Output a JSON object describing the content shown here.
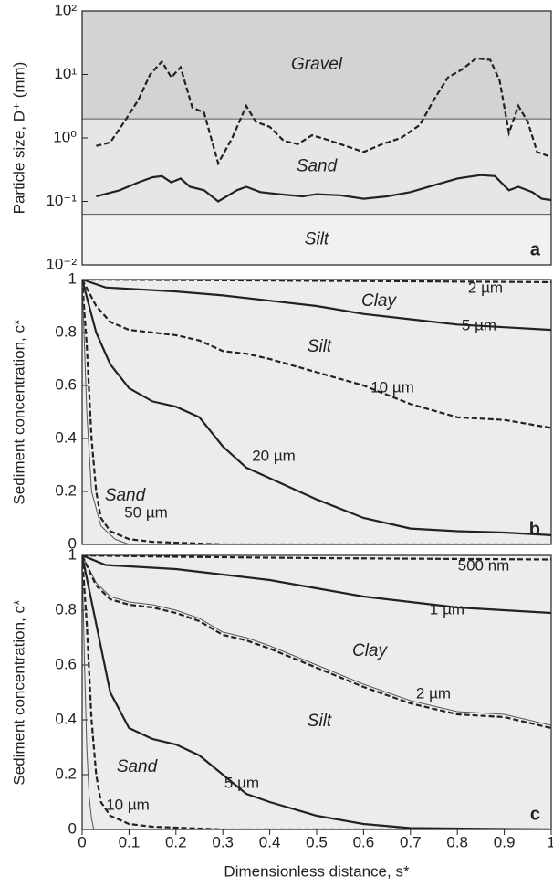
{
  "chart_data": [
    {
      "type": "line",
      "panel_label": "a",
      "ylabel": "Particle size, D⁺ (mm)",
      "yscale": "log",
      "xlim": [
        0,
        1
      ],
      "ylim": [
        0.01,
        100
      ],
      "yticks": [
        {
          "value": 100,
          "label": "10²"
        },
        {
          "value": 10,
          "label": "10¹"
        },
        {
          "value": 1,
          "label": "10⁰"
        },
        {
          "value": 0.1,
          "label": "10⁻¹"
        },
        {
          "value": 0.01,
          "label": "10⁻²"
        }
      ],
      "bands": [
        {
          "name": "Gravel",
          "from": 2,
          "to": 100,
          "color": "#d3d3d3"
        },
        {
          "name": "Sand",
          "from": 0.0625,
          "to": 2,
          "color": "#e6e6e6"
        },
        {
          "name": "Silt",
          "from": 0.01,
          "to": 0.0625,
          "color": "#f1f1f1"
        }
      ],
      "series": [
        {
          "color": "#222",
          "dash": true,
          "x": [
            0.03,
            0.06,
            0.09,
            0.12,
            0.145,
            0.17,
            0.19,
            0.21,
            0.235,
            0.26,
            0.29,
            0.32,
            0.35,
            0.37,
            0.4,
            0.43,
            0.46,
            0.49,
            0.52,
            0.55,
            0.6,
            0.64,
            0.68,
            0.72,
            0.75,
            0.78,
            0.81,
            0.84,
            0.87,
            0.89,
            0.91,
            0.93,
            0.95,
            0.97,
            1.0
          ],
          "values": [
            0.75,
            0.85,
            1.8,
            4,
            10,
            16,
            9,
            13,
            3,
            2.5,
            0.4,
            1,
            3.2,
            1.8,
            1.5,
            0.9,
            0.8,
            1.1,
            0.95,
            0.8,
            0.6,
            0.8,
            1,
            1.6,
            4,
            9,
            12,
            18,
            17,
            8,
            1.2,
            3.2,
            1.8,
            0.6,
            0.5
          ]
        },
        {
          "color": "#222",
          "dash": false,
          "x": [
            0.03,
            0.08,
            0.12,
            0.15,
            0.17,
            0.19,
            0.21,
            0.23,
            0.26,
            0.29,
            0.33,
            0.35,
            0.38,
            0.42,
            0.47,
            0.5,
            0.55,
            0.6,
            0.65,
            0.7,
            0.75,
            0.8,
            0.85,
            0.88,
            0.91,
            0.93,
            0.96,
            0.98,
            1.0
          ],
          "values": [
            0.12,
            0.15,
            0.2,
            0.24,
            0.25,
            0.2,
            0.23,
            0.17,
            0.15,
            0.1,
            0.15,
            0.17,
            0.14,
            0.13,
            0.12,
            0.13,
            0.125,
            0.11,
            0.12,
            0.14,
            0.18,
            0.23,
            0.26,
            0.25,
            0.15,
            0.17,
            0.14,
            0.11,
            0.105
          ]
        }
      ]
    },
    {
      "type": "line",
      "panel_label": "b",
      "ylabel": "Sediment concentration, c*",
      "background": "#ececec",
      "xlim": [
        0,
        1
      ],
      "ylim": [
        0,
        1
      ],
      "yticks": [
        0,
        0.2,
        0.4,
        0.6,
        0.8,
        1
      ],
      "annotations": [
        "Clay",
        "Silt",
        "Sand"
      ],
      "series": [
        {
          "name": "2 µm",
          "color": "#222",
          "dash": true,
          "x": [
            0,
            0.2,
            0.5,
            1
          ],
          "values": [
            1,
            0.998,
            0.995,
            0.99
          ]
        },
        {
          "name": "5 µm",
          "color": "#222",
          "dash": false,
          "x": [
            0,
            0.05,
            0.1,
            0.2,
            0.3,
            0.4,
            0.5,
            0.6,
            0.7,
            0.8,
            0.9,
            1
          ],
          "values": [
            1,
            0.97,
            0.965,
            0.955,
            0.94,
            0.92,
            0.9,
            0.87,
            0.85,
            0.83,
            0.82,
            0.81
          ]
        },
        {
          "name": "10 µm",
          "color": "#222",
          "dash": true,
          "x": [
            0,
            0.03,
            0.06,
            0.1,
            0.15,
            0.2,
            0.25,
            0.3,
            0.35,
            0.4,
            0.5,
            0.6,
            0.7,
            0.8,
            0.9,
            1
          ],
          "values": [
            1,
            0.9,
            0.84,
            0.81,
            0.8,
            0.79,
            0.77,
            0.73,
            0.72,
            0.7,
            0.65,
            0.6,
            0.53,
            0.48,
            0.47,
            0.44
          ]
        },
        {
          "name": "20 µm",
          "color": "#222",
          "dash": false,
          "x": [
            0,
            0.03,
            0.06,
            0.1,
            0.15,
            0.2,
            0.25,
            0.3,
            0.35,
            0.4,
            0.5,
            0.6,
            0.7,
            0.8,
            0.9,
            1
          ],
          "values": [
            1,
            0.8,
            0.68,
            0.59,
            0.54,
            0.52,
            0.48,
            0.37,
            0.29,
            0.25,
            0.17,
            0.1,
            0.06,
            0.05,
            0.045,
            0.035
          ]
        },
        {
          "name": "50 µm",
          "color": "#222",
          "dash": true,
          "x": [
            0,
            0.01,
            0.02,
            0.03,
            0.04,
            0.06,
            0.1,
            0.15,
            0.3,
            1
          ],
          "values": [
            1,
            0.75,
            0.4,
            0.2,
            0.1,
            0.05,
            0.02,
            0.01,
            0,
            0
          ]
        },
        {
          "color": "#555",
          "dash": false,
          "thin": true,
          "x": [
            0,
            0.01,
            0.02,
            0.04,
            0.07,
            0.1
          ],
          "values": [
            1,
            0.5,
            0.2,
            0.07,
            0.02,
            0
          ]
        }
      ]
    },
    {
      "type": "line",
      "panel_label": "c",
      "ylabel": "Sediment concentration, c*",
      "xlabel": "Dimensionless distance, s*",
      "background": "#ececec",
      "xlim": [
        0,
        1
      ],
      "ylim": [
        0,
        1
      ],
      "yticks": [
        0,
        0.2,
        0.4,
        0.6,
        0.8,
        1
      ],
      "xticks": [
        0,
        0.1,
        0.2,
        0.3,
        0.4,
        0.5,
        0.6,
        0.7,
        0.8,
        0.9,
        1
      ],
      "annotations": [
        "Clay",
        "Silt",
        "Sand"
      ],
      "series": [
        {
          "name": "500 nm",
          "color": "#222",
          "dash": true,
          "x": [
            0,
            0.2,
            0.5,
            1
          ],
          "values": [
            1,
            0.995,
            0.99,
            0.985
          ]
        },
        {
          "name": "1 µm",
          "color": "#222",
          "dash": false,
          "x": [
            0,
            0.05,
            0.1,
            0.2,
            0.3,
            0.4,
            0.5,
            0.6,
            0.7,
            0.8,
            0.9,
            1
          ],
          "values": [
            1,
            0.965,
            0.96,
            0.95,
            0.93,
            0.91,
            0.88,
            0.85,
            0.83,
            0.81,
            0.8,
            0.79
          ]
        },
        {
          "name": "2 µm",
          "color": "#555",
          "dash": false,
          "thin": true,
          "x": [
            0,
            0.03,
            0.06,
            0.1,
            0.15,
            0.2,
            0.25,
            0.3,
            0.35,
            0.4,
            0.5,
            0.6,
            0.7,
            0.8,
            0.9,
            1
          ],
          "values": [
            1,
            0.9,
            0.85,
            0.83,
            0.82,
            0.8,
            0.77,
            0.72,
            0.7,
            0.67,
            0.6,
            0.53,
            0.47,
            0.43,
            0.42,
            0.38
          ]
        },
        {
          "color": "#222",
          "dash": true,
          "x": [
            0,
            0.03,
            0.06,
            0.1,
            0.15,
            0.2,
            0.25,
            0.3,
            0.35,
            0.4,
            0.5,
            0.6,
            0.7,
            0.8,
            0.9,
            1
          ],
          "values": [
            1,
            0.89,
            0.84,
            0.82,
            0.81,
            0.79,
            0.76,
            0.71,
            0.69,
            0.66,
            0.59,
            0.52,
            0.46,
            0.42,
            0.41,
            0.37
          ]
        },
        {
          "name": "5 µm",
          "color": "#222",
          "dash": false,
          "x": [
            0,
            0.03,
            0.06,
            0.1,
            0.15,
            0.2,
            0.25,
            0.3,
            0.35,
            0.4,
            0.5,
            0.6,
            0.7,
            1
          ],
          "values": [
            1,
            0.75,
            0.5,
            0.37,
            0.33,
            0.31,
            0.27,
            0.2,
            0.13,
            0.1,
            0.05,
            0.02,
            0.005,
            0
          ]
        },
        {
          "name": "10 µm",
          "color": "#222",
          "dash": true,
          "x": [
            0,
            0.01,
            0.02,
            0.03,
            0.04,
            0.06,
            0.1,
            0.15,
            0.3,
            1
          ],
          "values": [
            1,
            0.75,
            0.4,
            0.2,
            0.1,
            0.05,
            0.02,
            0.01,
            0,
            0
          ]
        },
        {
          "color": "#555",
          "dash": false,
          "thin": true,
          "x": [
            0,
            0.005,
            0.01,
            0.015,
            0.02,
            0.025
          ],
          "values": [
            1,
            0.6,
            0.3,
            0.12,
            0.04,
            0
          ]
        }
      ]
    }
  ]
}
